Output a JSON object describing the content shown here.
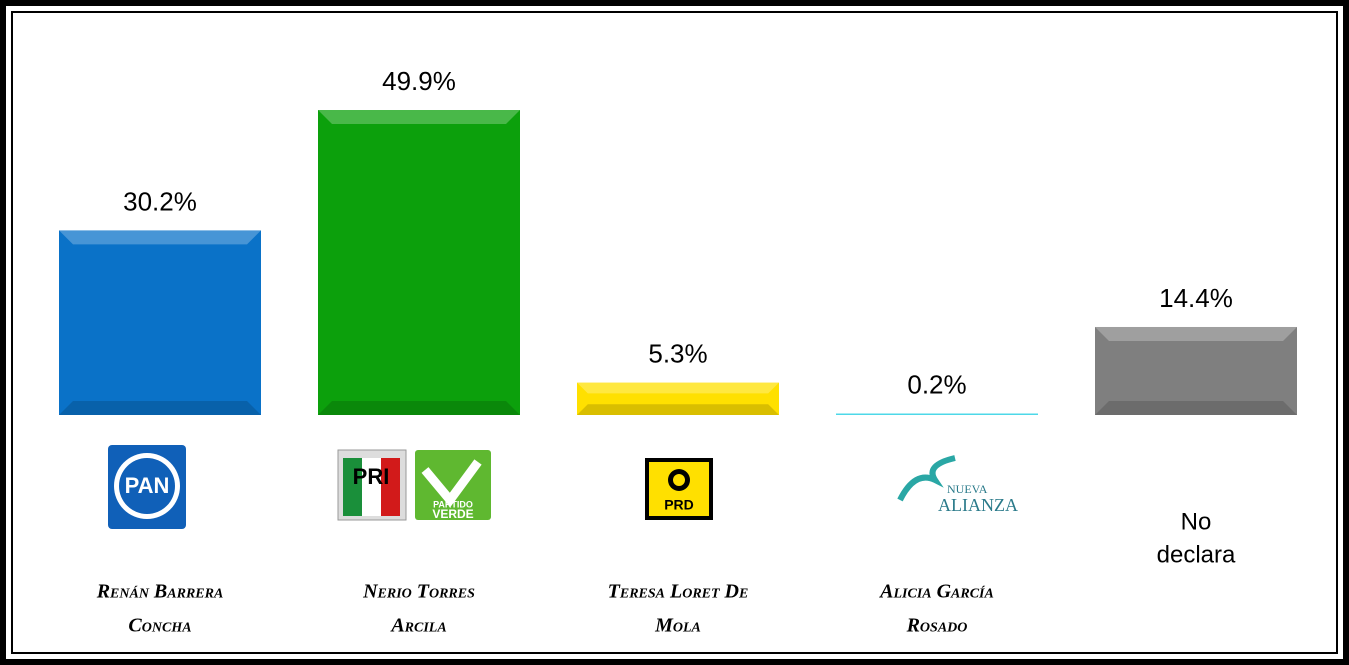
{
  "chart_data": {
    "type": "bar",
    "categories": [
      [
        "Renán Barrera",
        "Concha"
      ],
      [
        "Nerio Torres",
        "Arcila"
      ],
      [
        "Teresa Loret De",
        "Mola"
      ],
      [
        "Alicia García",
        "Rosado"
      ],
      [
        "No",
        "declara"
      ]
    ],
    "values": [
      30.2,
      49.9,
      5.3,
      0.2,
      14.4
    ],
    "value_labels": [
      "30.2%",
      "49.9%",
      "5.3%",
      "0.2%",
      "14.4%"
    ],
    "colors": [
      "#0a72c8",
      "#0ca00c",
      "#ffe000",
      "#4ed8e8",
      "#7f7f7f"
    ]
  },
  "logos": {
    "pan": "PAN",
    "pri": "PRI",
    "pv": [
      "PARTIDO",
      "VERDE"
    ],
    "prd": "PRD",
    "na": [
      "NUEVA",
      "ALIANZA"
    ]
  }
}
